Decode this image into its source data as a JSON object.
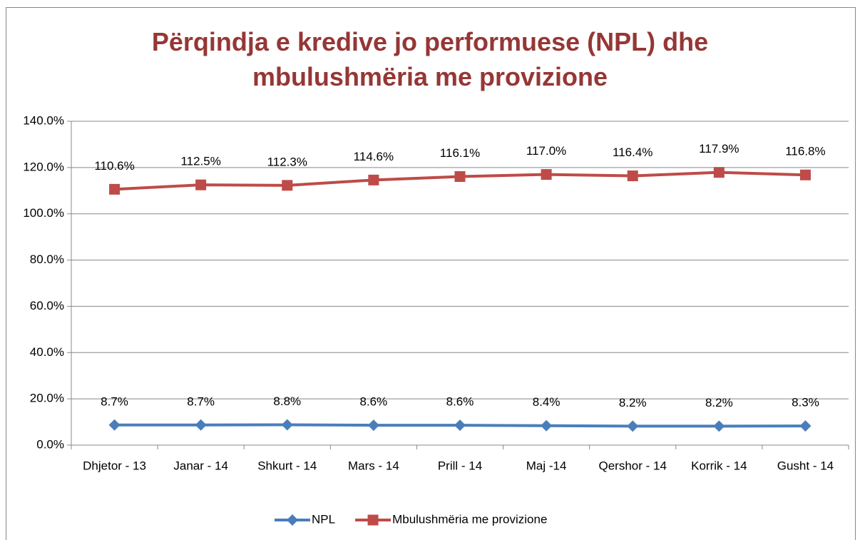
{
  "chart_data": {
    "type": "line",
    "title": "Përqindja e kredive jo performuese (NPL) dhe mbulushmëria me provizione",
    "categories": [
      "Dhjetor - 13",
      "Janar - 14",
      "Shkurt - 14",
      "Mars - 14",
      "Prill - 14",
      "Maj -14",
      "Qershor - 14",
      "Korrik - 14",
      "Gusht - 14"
    ],
    "series": [
      {
        "name": "NPL",
        "color": "#4a7ebb",
        "marker": "diamond",
        "values": [
          8.7,
          8.7,
          8.8,
          8.6,
          8.6,
          8.4,
          8.2,
          8.2,
          8.3
        ],
        "value_labels": [
          "8.7%",
          "8.7%",
          "8.8%",
          "8.6%",
          "8.6%",
          "8.4%",
          "8.2%",
          "8.2%",
          "8.3%"
        ]
      },
      {
        "name": "Mbulushmëria me provizione",
        "color": "#be4b48",
        "marker": "square",
        "values": [
          110.6,
          112.5,
          112.3,
          114.6,
          116.1,
          117.0,
          116.4,
          117.9,
          116.8
        ],
        "value_labels": [
          "110.6%",
          "112.5%",
          "112.3%",
          "114.6%",
          "116.1%",
          "117.0%",
          "116.4%",
          "117.9%",
          "116.8%"
        ]
      }
    ],
    "ylim": [
      0,
      140
    ],
    "yticks": [
      {
        "value": 0,
        "label": "0.0%"
      },
      {
        "value": 20,
        "label": "20.0%"
      },
      {
        "value": 40,
        "label": "40.0%"
      },
      {
        "value": 60,
        "label": "60.0%"
      },
      {
        "value": 80,
        "label": "80.0%"
      },
      {
        "value": 100,
        "label": "100.0%"
      },
      {
        "value": 120,
        "label": "120.0%"
      },
      {
        "value": 140,
        "label": "140.0%"
      }
    ],
    "grid": true,
    "legend": "bottom"
  }
}
